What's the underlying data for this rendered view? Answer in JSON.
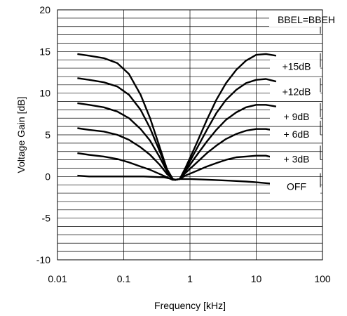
{
  "chart_data": {
    "type": "line",
    "title": "",
    "xlabel": "Frequency [kHz]",
    "ylabel": "Voltage Gain [dB]",
    "xscale": "log",
    "xlim": [
      0.01,
      100
    ],
    "ylim": [
      -10,
      20
    ],
    "x_ticks": [
      0.01,
      0.1,
      1,
      10,
      100
    ],
    "x_tick_labels": [
      "0.01",
      "0.1",
      "1",
      "10",
      "100"
    ],
    "y_ticks": [
      -10,
      -5,
      0,
      5,
      10,
      15,
      20
    ],
    "y_tick_labels": [
      "-10",
      "-5",
      "0",
      "5",
      "10",
      "15",
      "20"
    ],
    "y_minor_step": 1,
    "grid": true,
    "legend": "inline labels at right end of curves",
    "legend_header": "BBEL=BBEH",
    "line_color": "#000000",
    "series": [
      {
        "name": "+15dB",
        "x": [
          0.02,
          0.03,
          0.05,
          0.08,
          0.12,
          0.18,
          0.25,
          0.35,
          0.45,
          0.55,
          0.6,
          0.7,
          0.85,
          1.2,
          1.8,
          2.5,
          3.5,
          5,
          7,
          10,
          14,
          20
        ],
        "y": [
          14.7,
          14.5,
          14.2,
          13.6,
          12.3,
          9.8,
          7.0,
          3.5,
          0.9,
          -0.3,
          -0.4,
          -0.3,
          1.0,
          3.6,
          6.8,
          9.2,
          11.2,
          12.8,
          13.9,
          14.6,
          14.7,
          14.5
        ]
      },
      {
        "name": "+12dB",
        "x": [
          0.02,
          0.03,
          0.05,
          0.08,
          0.12,
          0.18,
          0.25,
          0.35,
          0.45,
          0.55,
          0.6,
          0.7,
          0.85,
          1.2,
          1.8,
          2.5,
          3.5,
          5,
          7,
          10,
          14,
          20
        ],
        "y": [
          11.8,
          11.6,
          11.3,
          10.8,
          9.8,
          8.0,
          5.8,
          3.0,
          0.8,
          -0.3,
          -0.4,
          -0.3,
          0.8,
          3.0,
          5.6,
          7.6,
          9.2,
          10.4,
          11.2,
          11.6,
          11.7,
          11.4
        ]
      },
      {
        "name": "+ 9dB",
        "x": [
          0.02,
          0.03,
          0.05,
          0.08,
          0.12,
          0.18,
          0.25,
          0.35,
          0.45,
          0.55,
          0.6,
          0.7,
          0.85,
          1.2,
          1.8,
          2.5,
          3.5,
          5,
          7,
          10,
          14,
          20
        ],
        "y": [
          8.8,
          8.6,
          8.3,
          7.8,
          7.0,
          5.7,
          4.3,
          2.3,
          0.6,
          -0.3,
          -0.4,
          -0.3,
          0.6,
          2.3,
          4.2,
          5.6,
          6.8,
          7.7,
          8.3,
          8.6,
          8.6,
          8.4
        ]
      },
      {
        "name": "+ 6dB",
        "x": [
          0.02,
          0.03,
          0.05,
          0.08,
          0.12,
          0.18,
          0.25,
          0.35,
          0.45,
          0.55,
          0.6,
          0.7,
          0.85,
          1.2,
          1.8,
          2.5,
          3.5,
          5,
          7,
          10,
          14,
          20
        ],
        "y": [
          5.8,
          5.6,
          5.4,
          5.0,
          4.4,
          3.5,
          2.6,
          1.4,
          0.3,
          -0.3,
          -0.4,
          -0.3,
          0.4,
          1.5,
          2.8,
          3.7,
          4.5,
          5.1,
          5.5,
          5.7,
          5.7,
          5.5
        ]
      },
      {
        "name": "+ 3dB",
        "x": [
          0.02,
          0.03,
          0.05,
          0.08,
          0.12,
          0.18,
          0.25,
          0.35,
          0.45,
          0.55,
          0.6,
          0.7,
          0.85,
          1.2,
          1.8,
          2.5,
          3.5,
          5,
          7,
          10,
          14,
          20
        ],
        "y": [
          2.8,
          2.6,
          2.4,
          2.1,
          1.7,
          1.2,
          0.8,
          0.3,
          -0.1,
          -0.4,
          -0.4,
          -0.3,
          0.1,
          0.6,
          1.2,
          1.6,
          2.0,
          2.3,
          2.4,
          2.5,
          2.5,
          2.2
        ]
      },
      {
        "name": "OFF",
        "x": [
          0.02,
          0.03,
          0.05,
          0.1,
          0.2,
          0.4,
          0.55,
          0.6,
          0.7,
          1.0,
          2.0,
          4.0,
          7.0,
          10,
          14,
          20
        ],
        "y": [
          0.1,
          0.0,
          0.0,
          0.0,
          0.0,
          -0.1,
          -0.3,
          -0.4,
          -0.3,
          -0.3,
          -0.4,
          -0.5,
          -0.6,
          -0.7,
          -0.8,
          -0.9
        ]
      }
    ]
  }
}
